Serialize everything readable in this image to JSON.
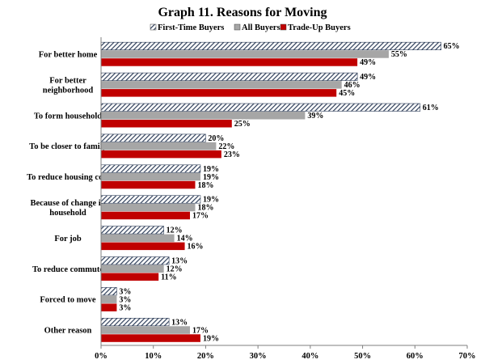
{
  "chart_data": {
    "type": "bar",
    "orientation": "horizontal",
    "title": "Graph 11. Reasons for Moving",
    "categories": [
      "For better home",
      "For better neighborhood",
      "To form household",
      "To be closer to family",
      "To reduce housing cost",
      "Because of change in household",
      "For job",
      "To reduce commute",
      "Forced to move",
      "Other reason"
    ],
    "series": [
      {
        "name": "First-Time Buyers",
        "pattern": "diagonal-hatch",
        "color": "#2f3f5a",
        "values": [
          65,
          49,
          61,
          20,
          19,
          19,
          12,
          13,
          3,
          13
        ]
      },
      {
        "name": "All Buyers",
        "pattern": "solid",
        "color": "#a6a6a6",
        "values": [
          55,
          46,
          39,
          22,
          19,
          18,
          14,
          12,
          3,
          17
        ]
      },
      {
        "name": "Trade-Up Buyers",
        "pattern": "solid",
        "color": "#c00000",
        "values": [
          49,
          45,
          25,
          23,
          18,
          17,
          16,
          11,
          3,
          19
        ]
      }
    ],
    "xlim": [
      0,
      70
    ],
    "xticks": [
      "0%",
      "10%",
      "20%",
      "30%",
      "40%",
      "50%",
      "60%",
      "70%"
    ],
    "value_suffix": "%",
    "legend_position": "top",
    "grid": false
  }
}
